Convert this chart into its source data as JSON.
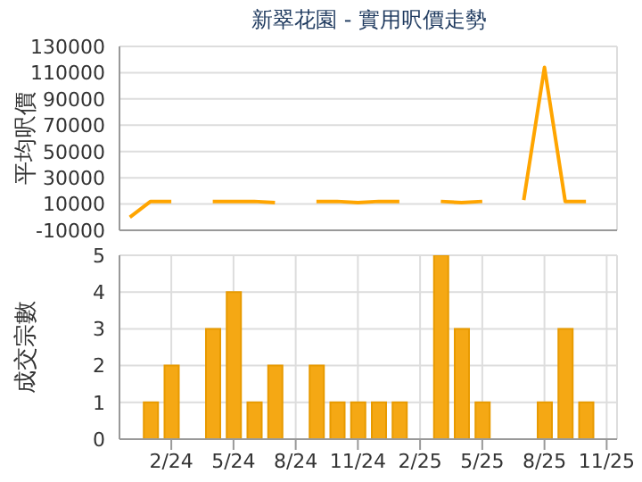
{
  "chart_data": [
    {
      "type": "line",
      "title": "新翠花園 - 實用呎價走勢",
      "ylabel": "平均呎價",
      "categories": [
        null,
        null,
        null,
        null,
        null,
        null,
        null,
        null,
        null,
        null,
        null,
        null,
        null,
        null,
        null,
        null,
        null,
        null,
        null,
        null,
        null,
        null,
        null,
        null
      ],
      "series": [
        {
          "color": "#ffa500",
          "values": [
            0,
            12000,
            12000,
            null,
            12000,
            12000,
            12000,
            11000,
            null,
            12000,
            12000,
            11000,
            12000,
            12000,
            null,
            12000,
            11000,
            12000,
            null,
            13000,
            114000,
            12000,
            12000,
            null
          ]
        }
      ],
      "ylim": [
        -10000,
        130000
      ],
      "yticks": [
        -10000,
        10000,
        30000,
        50000,
        70000,
        90000,
        110000,
        130000
      ],
      "grid": true,
      "tick_labels": "y",
      "marker": "none",
      "line_style": "solid"
    },
    {
      "type": "bar",
      "ylabel": "成交宗數",
      "categories": [
        null,
        null,
        "2/24",
        null,
        null,
        "5/24",
        null,
        null,
        "8/24",
        null,
        null,
        "11/24",
        null,
        null,
        "2/25",
        null,
        null,
        "5/25",
        null,
        null,
        "8/25",
        null,
        null,
        "11/25"
      ],
      "series": [
        {
          "color": "#f5a814",
          "values": [
            0,
            1,
            2,
            0,
            3,
            4,
            1,
            2,
            0,
            2,
            1,
            1,
            1,
            1,
            0,
            5,
            3,
            1,
            0,
            0,
            1,
            3,
            1,
            0
          ]
        }
      ],
      "ylim": [
        0,
        5
      ],
      "yticks": [
        0,
        1,
        2,
        3,
        4,
        5
      ],
      "grid": true
    }
  ]
}
